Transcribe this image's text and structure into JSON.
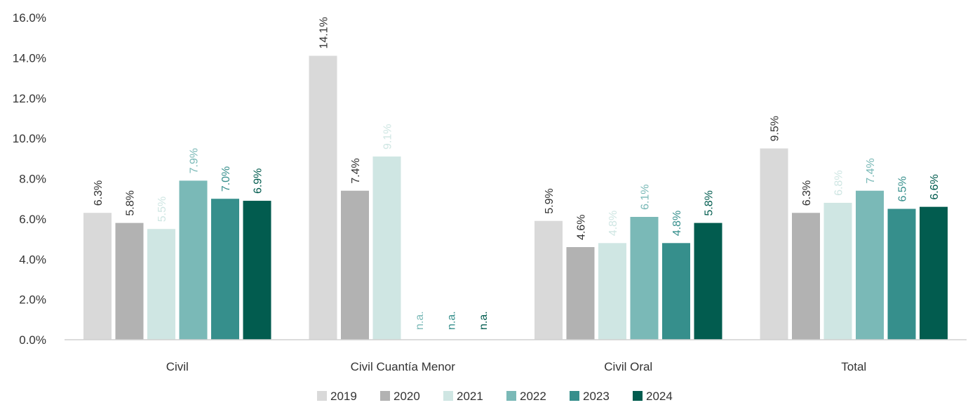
{
  "chart_data": {
    "type": "bar",
    "categories": [
      "Civil",
      "Civil Cuantía Menor",
      "Civil Oral",
      "Total"
    ],
    "y_ticks": [
      "0.0%",
      "2.0%",
      "4.0%",
      "6.0%",
      "8.0%",
      "10.0%",
      "12.0%",
      "14.0%",
      "16.0%"
    ],
    "ylim": [
      0,
      16
    ],
    "legend_position": "bottom",
    "grid": false,
    "series": [
      {
        "name": "2019",
        "color": "#d9d9d9",
        "label_color": "#333333",
        "values": [
          6.3,
          14.1,
          5.9,
          9.5
        ],
        "labels": [
          "6.3%",
          "14.1%",
          "5.9%",
          "9.5%"
        ]
      },
      {
        "name": "2020",
        "color": "#b2b2b2",
        "label_color": "#333333",
        "values": [
          5.8,
          7.4,
          4.6,
          6.3
        ],
        "labels": [
          "5.8%",
          "7.4%",
          "4.6%",
          "6.3%"
        ]
      },
      {
        "name": "2021",
        "color": "#cfe6e3",
        "label_color": "#cfe6e3",
        "values": [
          5.5,
          9.1,
          4.8,
          6.8
        ],
        "labels": [
          "5.5%",
          "9.1%",
          "4.8%",
          "6.8%"
        ]
      },
      {
        "name": "2022",
        "color": "#7ab9b7",
        "label_color": "#7ab9b7",
        "values": [
          7.9,
          null,
          6.1,
          7.4
        ],
        "labels": [
          "7.9%",
          "n.a.",
          "6.1%",
          "7.4%"
        ]
      },
      {
        "name": "2023",
        "color": "#368f8c",
        "label_color": "#368f8c",
        "values": [
          7.0,
          null,
          4.8,
          6.5
        ],
        "labels": [
          "7.0%",
          "n.a.",
          "4.8%",
          "6.5%"
        ]
      },
      {
        "name": "2024",
        "color": "#025c4f",
        "label_color": "#025c4f",
        "values": [
          6.9,
          null,
          5.8,
          6.6
        ],
        "labels": [
          "6.9%",
          "n.a.",
          "5.8%",
          "6.6%"
        ]
      }
    ]
  }
}
